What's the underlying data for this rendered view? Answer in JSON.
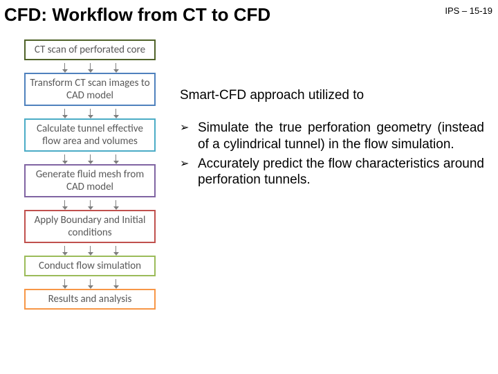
{
  "header": {
    "title": "CFD: Workflow from CT to CFD",
    "right": "IPS – 15-19"
  },
  "flow": {
    "border_colors": [
      "#4f6228",
      "#4f81bd",
      "#4bacc6",
      "#8064a2",
      "#c0504d",
      "#9bbb59",
      "#f79646"
    ],
    "box_bg": "#ffffff",
    "text_color": "#595959",
    "arrow_color": "#7f7f7f",
    "steps": [
      "CT scan of perforated core",
      "Transform CT scan images to CAD model",
      "Calculate tunnel effective flow area and volumes",
      "Generate fluid mesh from CAD model",
      "Apply Boundary and Initial conditions",
      "Conduct flow simulation",
      "Results and analysis"
    ]
  },
  "right": {
    "intro": "Smart-CFD approach utilized to",
    "bullet_marker": "➢",
    "bullets": [
      "Simulate the true perforation geometry (instead of a cylindrical tunnel) in the flow simulation.",
      "Accurately predict the flow characteristics around perforation tunnels."
    ]
  }
}
